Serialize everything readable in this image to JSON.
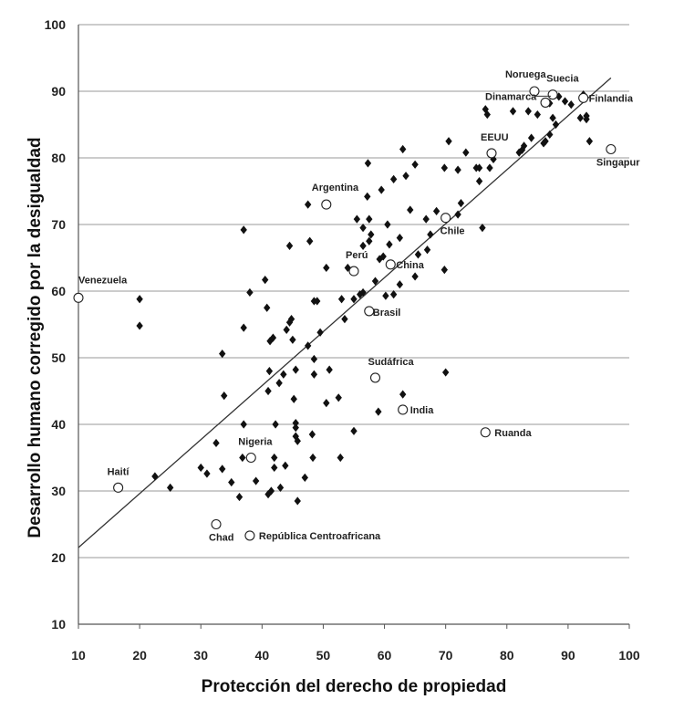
{
  "chart_data": {
    "type": "scatter",
    "title": "",
    "xlabel": "Protección del derecho de propiedad",
    "ylabel": "Desarrollo humano corregido por la desigualdad",
    "xlim": [
      10,
      100
    ],
    "ylim": [
      10,
      100
    ],
    "xticks": [
      "10",
      "20",
      "30",
      "40",
      "50",
      "60",
      "70",
      "80",
      "90",
      "100"
    ],
    "yticks": [
      "10",
      "20",
      "30",
      "40",
      "50",
      "60",
      "70",
      "80",
      "90",
      "100"
    ],
    "grid": "horizontal",
    "legend": "none",
    "trendline": {
      "x": [
        10,
        97
      ],
      "y": [
        21.5,
        92
      ]
    },
    "labeled_points": [
      {
        "name": "Venezuela",
        "x": 10,
        "y": 59
      },
      {
        "name": "Haití",
        "x": 16.5,
        "y": 30.5
      },
      {
        "name": "Chad",
        "x": 32.5,
        "y": 25
      },
      {
        "name": "República Centroafricana",
        "x": 38,
        "y": 23.3
      },
      {
        "name": "Nigeria",
        "x": 38.2,
        "y": 35
      },
      {
        "name": "Argentina",
        "x": 50.5,
        "y": 73
      },
      {
        "name": "Perú",
        "x": 55,
        "y": 63
      },
      {
        "name": "Brasil",
        "x": 57.5,
        "y": 57
      },
      {
        "name": "China",
        "x": 61,
        "y": 64
      },
      {
        "name": "Sudáfrica",
        "x": 58.5,
        "y": 47
      },
      {
        "name": "India",
        "x": 63,
        "y": 42.2
      },
      {
        "name": "Chile",
        "x": 70,
        "y": 71
      },
      {
        "name": "Ruanda",
        "x": 76.5,
        "y": 38.8
      },
      {
        "name": "EEUU",
        "x": 77.5,
        "y": 80.7
      },
      {
        "name": "Noruega",
        "x": 84.5,
        "y": 90
      },
      {
        "name": "Suecia",
        "x": 87.5,
        "y": 89.5
      },
      {
        "name": "Dinamarca",
        "x": 86.3,
        "y": 88.3
      },
      {
        "name": "Finlandia",
        "x": 92.5,
        "y": 89
      },
      {
        "name": "Singapur",
        "x": 97,
        "y": 81.3
      }
    ],
    "other_points": [
      [
        20,
        58.8
      ],
      [
        20,
        54.8
      ],
      [
        22.5,
        32.2
      ],
      [
        25,
        30.5
      ],
      [
        30,
        33.5
      ],
      [
        31,
        32.6
      ],
      [
        32.5,
        37.2
      ],
      [
        33.5,
        33.3
      ],
      [
        33.5,
        50.6
      ],
      [
        33.8,
        44.3
      ],
      [
        35,
        31.3
      ],
      [
        36.3,
        29.1
      ],
      [
        36.8,
        35
      ],
      [
        37,
        40
      ],
      [
        37,
        54.5
      ],
      [
        37,
        69.2
      ],
      [
        38,
        59.8
      ],
      [
        39,
        31.5
      ],
      [
        40.5,
        61.7
      ],
      [
        40.8,
        57.5
      ],
      [
        41,
        45
      ],
      [
        41,
        29.5
      ],
      [
        41.2,
        48
      ],
      [
        41.3,
        52.5
      ],
      [
        41.5,
        30
      ],
      [
        41.8,
        53
      ],
      [
        42,
        35
      ],
      [
        42,
        33.5
      ],
      [
        42.2,
        40
      ],
      [
        42.8,
        46.2
      ],
      [
        43,
        30.5
      ],
      [
        43.5,
        47.5
      ],
      [
        43.8,
        33.8
      ],
      [
        44,
        54.2
      ],
      [
        44.5,
        55.3
      ],
      [
        44.5,
        66.8
      ],
      [
        44.8,
        55.8
      ],
      [
        45,
        52.7
      ],
      [
        45.2,
        43.8
      ],
      [
        45.5,
        48.2
      ],
      [
        45.5,
        40.2
      ],
      [
        45.5,
        39.5
      ],
      [
        45.5,
        38.2
      ],
      [
        45.8,
        37.5
      ],
      [
        45.8,
        28.5
      ],
      [
        47,
        32
      ],
      [
        47.5,
        51.8
      ],
      [
        47.8,
        67.5
      ],
      [
        47.5,
        73
      ],
      [
        48.2,
        38.5
      ],
      [
        48.5,
        49.8
      ],
      [
        48.5,
        47.5
      ],
      [
        48.5,
        58.5
      ],
      [
        49,
        58.5
      ],
      [
        48.3,
        35
      ],
      [
        49.5,
        53.8
      ],
      [
        50.5,
        43.2
      ],
      [
        50.5,
        63.5
      ],
      [
        51,
        48.2
      ],
      [
        52.5,
        44
      ],
      [
        52.8,
        35
      ],
      [
        53,
        58.8
      ],
      [
        53.5,
        55.8
      ],
      [
        54,
        63.5
      ],
      [
        55,
        39
      ],
      [
        55,
        58.8
      ],
      [
        55.5,
        70.8
      ],
      [
        56,
        59.5
      ],
      [
        56.5,
        66.8
      ],
      [
        56.5,
        59.8
      ],
      [
        56.5,
        69.5
      ],
      [
        57.2,
        74.2
      ],
      [
        57.3,
        79.2
      ],
      [
        57.5,
        67.5
      ],
      [
        57.5,
        70.8
      ],
      [
        57.8,
        68.5
      ],
      [
        58.5,
        61.5
      ],
      [
        59,
        41.9
      ],
      [
        59.2,
        64.8
      ],
      [
        59.5,
        75.2
      ],
      [
        59.8,
        65.2
      ],
      [
        60.2,
        59.3
      ],
      [
        60.5,
        70
      ],
      [
        60.8,
        67
      ],
      [
        61.5,
        59.5
      ],
      [
        61.5,
        76.8
      ],
      [
        62.5,
        68
      ],
      [
        62.5,
        61
      ],
      [
        63,
        44.5
      ],
      [
        63,
        81.3
      ],
      [
        63.5,
        77.3
      ],
      [
        64.2,
        72.2
      ],
      [
        65,
        62.2
      ],
      [
        65,
        79
      ],
      [
        65.5,
        65.5
      ],
      [
        66.8,
        70.8
      ],
      [
        67,
        66.2
      ],
      [
        67.5,
        68.5
      ],
      [
        68.5,
        72
      ],
      [
        69.8,
        63.2
      ],
      [
        69.8,
        78.5
      ],
      [
        70,
        47.8
      ],
      [
        70.5,
        82.5
      ],
      [
        72,
        71.5
      ],
      [
        72,
        78.2
      ],
      [
        72.5,
        73.2
      ],
      [
        73.3,
        80.8
      ],
      [
        75,
        78.5
      ],
      [
        75.5,
        78.5
      ],
      [
        75.5,
        76.5
      ],
      [
        76,
        69.5
      ],
      [
        76.5,
        87.3
      ],
      [
        76.8,
        86.5
      ],
      [
        77.2,
        78.5
      ],
      [
        77.8,
        79.8
      ],
      [
        81,
        87
      ],
      [
        82,
        80.8
      ],
      [
        82.5,
        81.2
      ],
      [
        82.8,
        81.8
      ],
      [
        83.5,
        87
      ],
      [
        84,
        83
      ],
      [
        85,
        86.5
      ],
      [
        86,
        82.2
      ],
      [
        86.3,
        82.5
      ],
      [
        87,
        83.5
      ],
      [
        87,
        88.2
      ],
      [
        87.5,
        86
      ],
      [
        88,
        85
      ],
      [
        88.5,
        89.2
      ],
      [
        89.5,
        88.5
      ],
      [
        90.5,
        88
      ],
      [
        92,
        86
      ],
      [
        92.5,
        89.5
      ],
      [
        93,
        85.8
      ],
      [
        93,
        86.3
      ],
      [
        93.5,
        82.5
      ]
    ]
  }
}
